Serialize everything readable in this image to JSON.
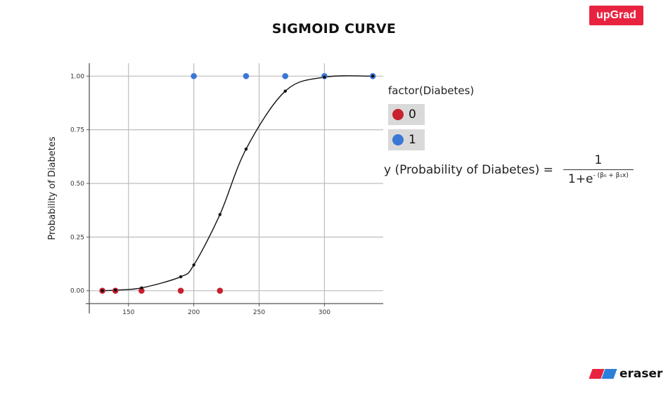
{
  "header": {
    "title": "SIGMOID CURVE"
  },
  "logos": {
    "top_right": "upGrad",
    "bottom_right": "eraser"
  },
  "legend": {
    "title": "factor(Diabetes)",
    "items": [
      {
        "label": "0",
        "color": "#c8202e"
      },
      {
        "label": "1",
        "color": "#3a78d4"
      }
    ]
  },
  "formula": {
    "lhs": "y (Probability of Diabetes) =",
    "numerator": "1",
    "denominator_base": "1+e",
    "denominator_exponent": "- (β₀ + β₁x)"
  },
  "chart_data": {
    "type": "scatter",
    "title": "SIGMOID CURVE",
    "xlabel": "",
    "ylabel": "Probability of Diabetes",
    "xlim": [
      120,
      345
    ],
    "ylim": [
      -0.06,
      1.06
    ],
    "xticks": [
      150,
      200,
      250,
      300
    ],
    "yticks": [
      0.0,
      0.25,
      0.5,
      0.75,
      1.0
    ],
    "ytick_labels": [
      "0.00",
      "0.25",
      "0.50",
      "0.75",
      "1.00"
    ],
    "grid": true,
    "legend_placement": "right",
    "series": [
      {
        "name": "0",
        "color": "#c8202e",
        "points": [
          [
            130,
            0
          ],
          [
            140,
            0
          ],
          [
            160,
            0
          ],
          [
            190,
            0
          ],
          [
            220,
            0
          ]
        ]
      },
      {
        "name": "1",
        "color": "#3a78d4",
        "points": [
          [
            200,
            1
          ],
          [
            240,
            1
          ],
          [
            270,
            1
          ],
          [
            300,
            1
          ],
          [
            337,
            1
          ]
        ]
      }
    ],
    "fitted_curve": {
      "color": "#111111",
      "points": [
        [
          130,
          0.0
        ],
        [
          140,
          0.003
        ],
        [
          160,
          0.013
        ],
        [
          190,
          0.065
        ],
        [
          200,
          0.12
        ],
        [
          220,
          0.355
        ],
        [
          240,
          0.66
        ],
        [
          270,
          0.93
        ],
        [
          300,
          0.995
        ],
        [
          337,
          1.0
        ]
      ]
    }
  }
}
